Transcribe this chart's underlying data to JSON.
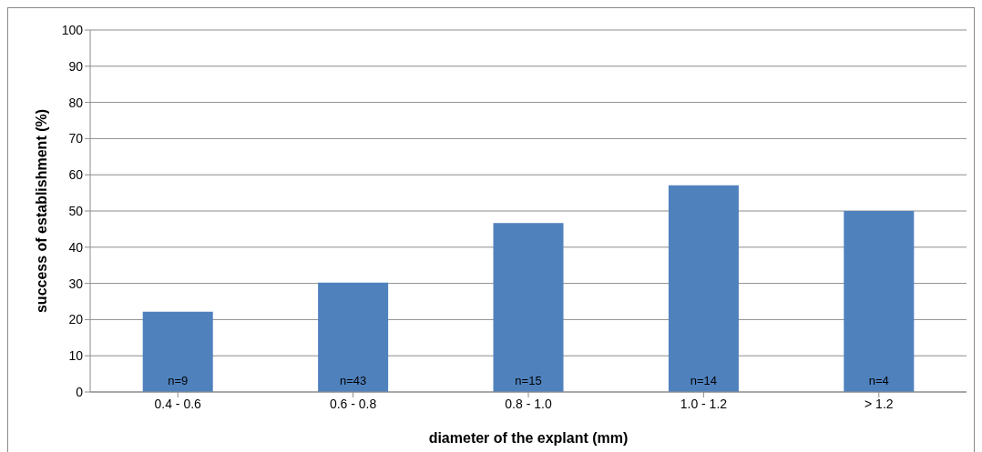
{
  "chart_data": {
    "type": "bar",
    "xlabel": "diameter of the explant (mm)",
    "ylabel": "success of establishment (%)",
    "categories": [
      "0.4 - 0.6",
      "0.6 - 0.8",
      "0.8 - 1.0",
      "1.0 - 1.2",
      "> 1.2"
    ],
    "values": [
      22.2,
      30.2,
      46.7,
      57.1,
      50
    ],
    "color": "#4f81bd",
    "ylim": [
      0,
      100
    ],
    "yticks": [
      0,
      10,
      20,
      30,
      40,
      50,
      60,
      70,
      80,
      90,
      100
    ],
    "grid": "y",
    "annotations": [
      "n=9",
      "n=43",
      "n=15",
      "n=14",
      "n=4"
    ]
  }
}
